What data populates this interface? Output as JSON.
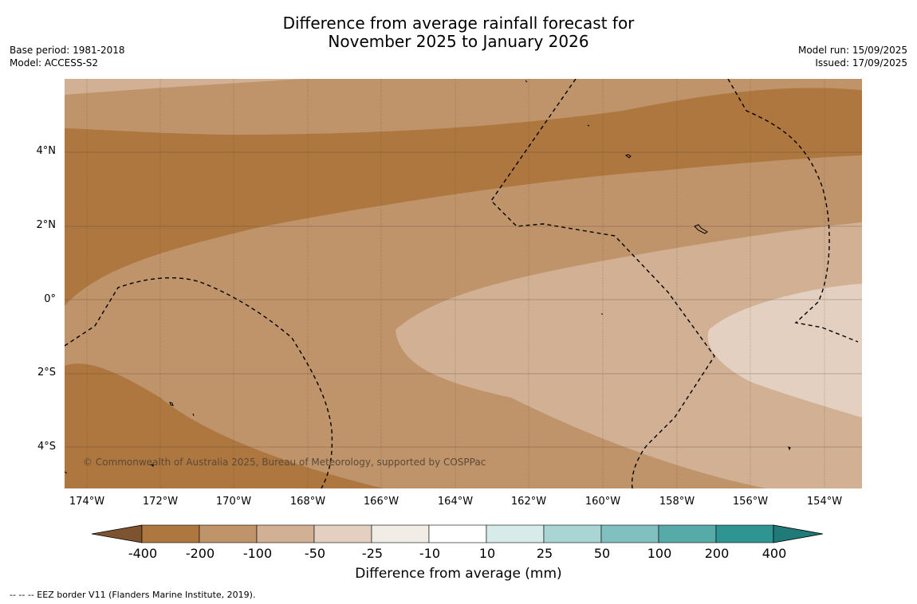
{
  "title": {
    "line1": "Difference from average rainfall forecast for",
    "line2": "November 2025 to January 2026"
  },
  "meta_left": {
    "base_period": "Base period: 1981-2018",
    "model": "Model: ACCESS-S2"
  },
  "meta_right": {
    "model_run": "Model run: 15/09/2025",
    "issued": "Issued: 17/09/2025"
  },
  "map": {
    "lat_labels": [
      "4°N",
      "2°N",
      "0°",
      "2°S",
      "4°S"
    ],
    "lon_labels": [
      "174°W",
      "172°W",
      "170°W",
      "168°W",
      "166°W",
      "164°W",
      "162°W",
      "160°W",
      "158°W",
      "156°W",
      "154°W"
    ],
    "copyright": "© Commonwealth of Australia 2025, Bureau of Meteorology, supported by COSPPac",
    "colors": {
      "minus200_400": "#ad773f",
      "minus100_200": "#c0946b",
      "minus50_100": "#d1b094",
      "minus25_50": "#e3d0c0"
    }
  },
  "colorbar": {
    "ticks": [
      "-400",
      "-200",
      "-100",
      "-50",
      "-25",
      "-10",
      "10",
      "25",
      "50",
      "100",
      "200",
      "400"
    ],
    "colors": [
      "#7d5330",
      "#ad773f",
      "#c0946b",
      "#d1b094",
      "#e3d0c0",
      "#f1ece6",
      "#ffffff",
      "#d7ecea",
      "#a9d6d5",
      "#80c1c0",
      "#56aaa8",
      "#2e9593",
      "#1f7a78"
    ],
    "label": "Difference from average (mm)"
  },
  "footer": "--  --  -- EEZ border V11 (Flanders Marine Institute, 2019)."
}
